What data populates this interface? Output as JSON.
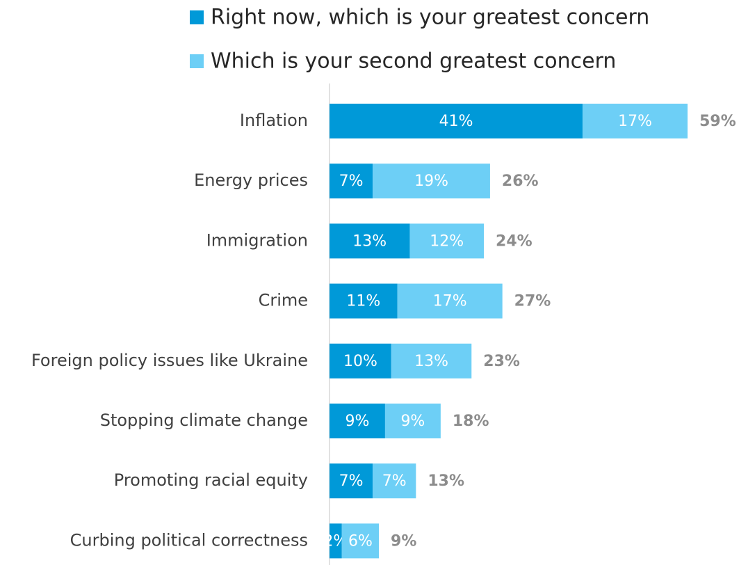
{
  "chart_data": {
    "type": "bar",
    "orientation": "horizontal",
    "stacked": true,
    "legend_position": "top",
    "grid": false,
    "categories": [
      "Inflation",
      "Energy prices",
      "Immigration",
      "Crime",
      "Foreign policy issues like Ukraine",
      "Stopping climate change",
      "Promoting racial equity",
      "Curbing political correctness"
    ],
    "series": [
      {
        "name": "Right now, which is your greatest concern",
        "color": "#0099D8",
        "values": [
          41,
          7,
          13,
          11,
          10,
          9,
          7,
          2
        ],
        "labels": [
          "41%",
          "7%",
          "13%",
          "11%",
          "10%",
          "9%",
          "7%",
          "2%"
        ]
      },
      {
        "name": "Which is your second greatest concern",
        "color": "#6DCFF6",
        "values": [
          17,
          19,
          12,
          17,
          13,
          9,
          7,
          6
        ],
        "labels": [
          "17%",
          "19%",
          "12%",
          "17%",
          "13%",
          "9%",
          "7%",
          "6%"
        ]
      }
    ],
    "totals": [
      "59%",
      "26%",
      "24%",
      "27%",
      "23%",
      "18%",
      "13%",
      "9%"
    ],
    "xlim": [
      0,
      59
    ]
  }
}
